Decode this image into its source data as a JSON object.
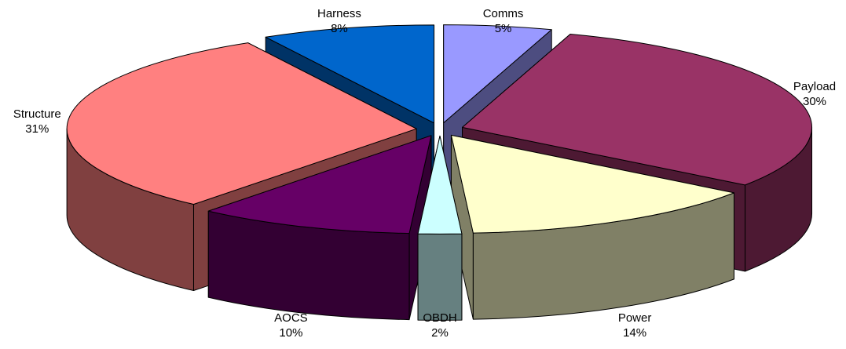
{
  "chart_data": {
    "type": "pie",
    "style": "3d-exploded",
    "legend": "none",
    "slices": [
      {
        "name": "Comms",
        "value": 5,
        "label": "5%",
        "top_color": "#9999ff",
        "side_color": "#4d4d80"
      },
      {
        "name": "Payload",
        "value": 30,
        "label": "30%",
        "top_color": "#993366",
        "side_color": "#4d1933"
      },
      {
        "name": "Power",
        "value": 14,
        "label": "14%",
        "top_color": "#ffffcc",
        "side_color": "#808066"
      },
      {
        "name": "OBDH",
        "value": 2,
        "label": "2%",
        "top_color": "#ccffff",
        "side_color": "#668080"
      },
      {
        "name": "AOCS",
        "value": 10,
        "label": "10%",
        "top_color": "#660066",
        "side_color": "#330033"
      },
      {
        "name": "Structure",
        "value": 31,
        "label": "31%",
        "top_color": "#ff8080",
        "side_color": "#804040"
      },
      {
        "name": "Harness",
        "value": 8,
        "label": "8%",
        "top_color": "#0066cc",
        "side_color": "#003366"
      }
    ]
  }
}
